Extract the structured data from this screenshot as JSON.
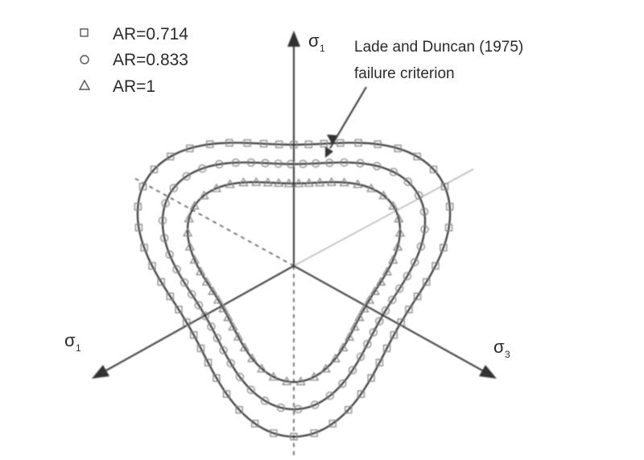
{
  "figure": {
    "axes": [
      {
        "id": "sigma-top",
        "label": "σ",
        "sub": "1"
      },
      {
        "id": "sigma-left",
        "label": "σ",
        "sub": "1"
      },
      {
        "id": "sigma-right",
        "label": "σ",
        "sub": "3"
      }
    ],
    "legend": [
      {
        "label": "AR=0.714",
        "marker": "square"
      },
      {
        "label": "AR=0.833",
        "marker": "circle"
      },
      {
        "label": "AR=1",
        "marker": "triangle"
      }
    ],
    "annotation": {
      "line1": "Lade and Duncan (1975)",
      "line2": "failure criterion"
    },
    "curves": [
      {
        "name": "AR=0.714",
        "size": 1.0
      },
      {
        "name": "AR=0.833",
        "size": 0.84
      },
      {
        "name": "AR=1",
        "size": 0.68
      }
    ],
    "colors": {
      "line": "#333333",
      "marker": "#7a7a7a",
      "background": "#ffffff"
    }
  }
}
